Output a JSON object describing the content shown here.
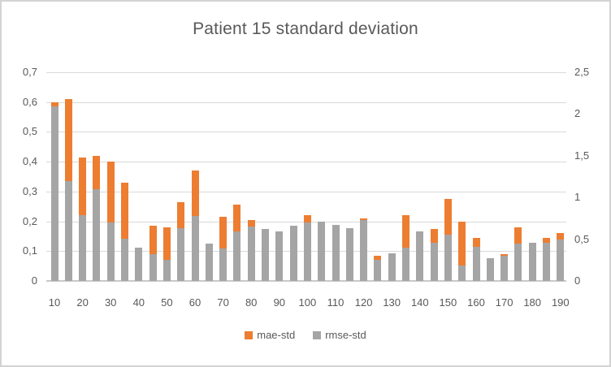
{
  "title": "Patient 15 standard deviation",
  "legend": {
    "items": [
      {
        "label": "mae-std",
        "color": "#ED7D31"
      },
      {
        "label": "rmse-std",
        "color": "#A5A5A5"
      }
    ]
  },
  "colors": {
    "mae": "#ED7D31",
    "rmse": "#A5A5A5",
    "gridline": "#D9D9D9",
    "axis_text": "#595959",
    "title_text": "#595959",
    "frame_border": "#D3D3D3"
  },
  "chart_data": {
    "type": "bar",
    "title": "Patient 15 standard deviation",
    "subtype": "overlapping-dual-axis",
    "grid": true,
    "legend_position": "bottom",
    "x": [
      10,
      15,
      20,
      25,
      30,
      35,
      40,
      45,
      50,
      55,
      60,
      65,
      70,
      75,
      80,
      85,
      90,
      95,
      100,
      105,
      110,
      115,
      120,
      125,
      130,
      135,
      140,
      145,
      150,
      155,
      160,
      165,
      170,
      175,
      180,
      185,
      190
    ],
    "x_tick_labels": [
      "10",
      "20",
      "30",
      "40",
      "50",
      "60",
      "70",
      "80",
      "90",
      "100",
      "110",
      "120",
      "130",
      "140",
      "150",
      "160",
      "170",
      "180",
      "190"
    ],
    "left_axis": {
      "min": 0,
      "max": 0.7,
      "step": 0.1,
      "tick_labels": [
        "0,7",
        "0,6",
        "0,5",
        "0,4",
        "0,3",
        "0,2",
        "0,1",
        "0"
      ]
    },
    "right_axis": {
      "min": 0,
      "max": 2.5,
      "step": 0.5,
      "tick_labels": [
        "2,5",
        "2",
        "1,5",
        "1",
        "0,5",
        "0"
      ]
    },
    "series": [
      {
        "name": "mae-std",
        "axis": "left",
        "color": "#ED7D31",
        "values": [
          0.6,
          0.61,
          0.415,
          0.42,
          0.4,
          0.33,
          null,
          0.185,
          0.18,
          0.265,
          0.37,
          null,
          0.215,
          0.255,
          0.205,
          null,
          null,
          null,
          0.22,
          null,
          null,
          null,
          0.21,
          0.085,
          null,
          0.22,
          null,
          0.175,
          0.275,
          0.2,
          0.145,
          null,
          0.09,
          0.18,
          null,
          0.145,
          0.16
        ]
      },
      {
        "name": "rmse-std",
        "axis": "right",
        "color": "#A5A5A5",
        "values": [
          2.09,
          1.2,
          0.79,
          1.1,
          0.7,
          0.51,
          0.4,
          0.32,
          0.25,
          0.63,
          0.78,
          0.45,
          0.39,
          0.59,
          0.65,
          0.62,
          0.59,
          0.66,
          0.7,
          0.71,
          0.67,
          0.63,
          0.73,
          0.25,
          0.33,
          0.4,
          0.59,
          0.46,
          0.55,
          0.18,
          0.41,
          0.27,
          0.3,
          0.45,
          0.46,
          0.46,
          0.5
        ]
      }
    ],
    "note": "mae-std bars are drawn behind rmse-std bars; null mae-std values are hidden behind the taller rmse-std bar at that x."
  }
}
